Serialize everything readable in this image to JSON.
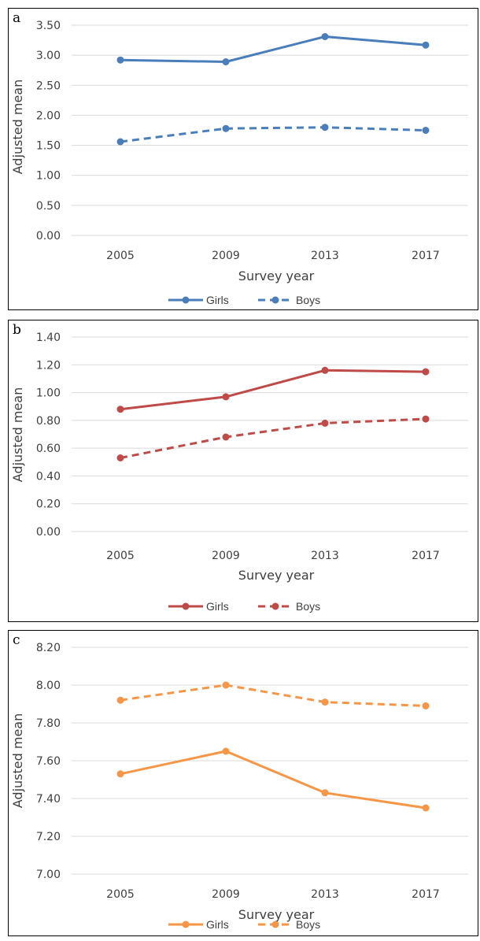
{
  "chart_data": [
    {
      "panel": "a",
      "type": "line",
      "categories": [
        "2005",
        "2009",
        "2013",
        "2017"
      ],
      "ylim": [
        0,
        3.5
      ],
      "yticks": [
        "0.00",
        "0.50",
        "1.00",
        "1.50",
        "2.00",
        "2.50",
        "3.00",
        "3.50"
      ],
      "xlabel": "Survey year",
      "ylabel": "Adjusted mean",
      "legend": "bottom",
      "grid": true,
      "series": [
        {
          "name": "Girls",
          "values": [
            2.92,
            2.89,
            3.31,
            3.17
          ],
          "color": "#4a7ebb",
          "dash": false
        },
        {
          "name": "Boys",
          "values": [
            1.56,
            1.78,
            1.8,
            1.75
          ],
          "color": "#4a7ebb",
          "dash": true
        }
      ]
    },
    {
      "panel": "b",
      "type": "line",
      "categories": [
        "2005",
        "2009",
        "2013",
        "2017"
      ],
      "ylim": [
        0,
        1.4
      ],
      "yticks": [
        "0.00",
        "0.20",
        "0.40",
        "0.60",
        "0.80",
        "1.00",
        "1.20",
        "1.40"
      ],
      "xlabel": "Survey year",
      "ylabel": "Adjusted mean",
      "legend": "bottom",
      "grid": true,
      "series": [
        {
          "name": "Girls",
          "values": [
            0.88,
            0.97,
            1.16,
            1.15
          ],
          "color": "#be4b48",
          "dash": false
        },
        {
          "name": "Boys",
          "values": [
            0.53,
            0.68,
            0.78,
            0.81
          ],
          "color": "#be4b48",
          "dash": true
        }
      ]
    },
    {
      "panel": "c",
      "type": "line",
      "categories": [
        "2005",
        "2009",
        "2013",
        "2017"
      ],
      "ylim": [
        7.0,
        8.2
      ],
      "yticks": [
        "7.00",
        "7.20",
        "7.40",
        "7.60",
        "7.80",
        "8.00",
        "8.20"
      ],
      "xlabel": "Survey year",
      "ylabel": "Adjusted mean",
      "legend": "bottom",
      "grid": true,
      "series": [
        {
          "name": "Girls",
          "values": [
            7.53,
            7.65,
            7.43,
            7.35
          ],
          "color": "#f79646",
          "dash": false
        },
        {
          "name": "Boys",
          "values": [
            7.92,
            8.0,
            7.91,
            7.89
          ],
          "color": "#f79646",
          "dash": true
        }
      ]
    }
  ]
}
